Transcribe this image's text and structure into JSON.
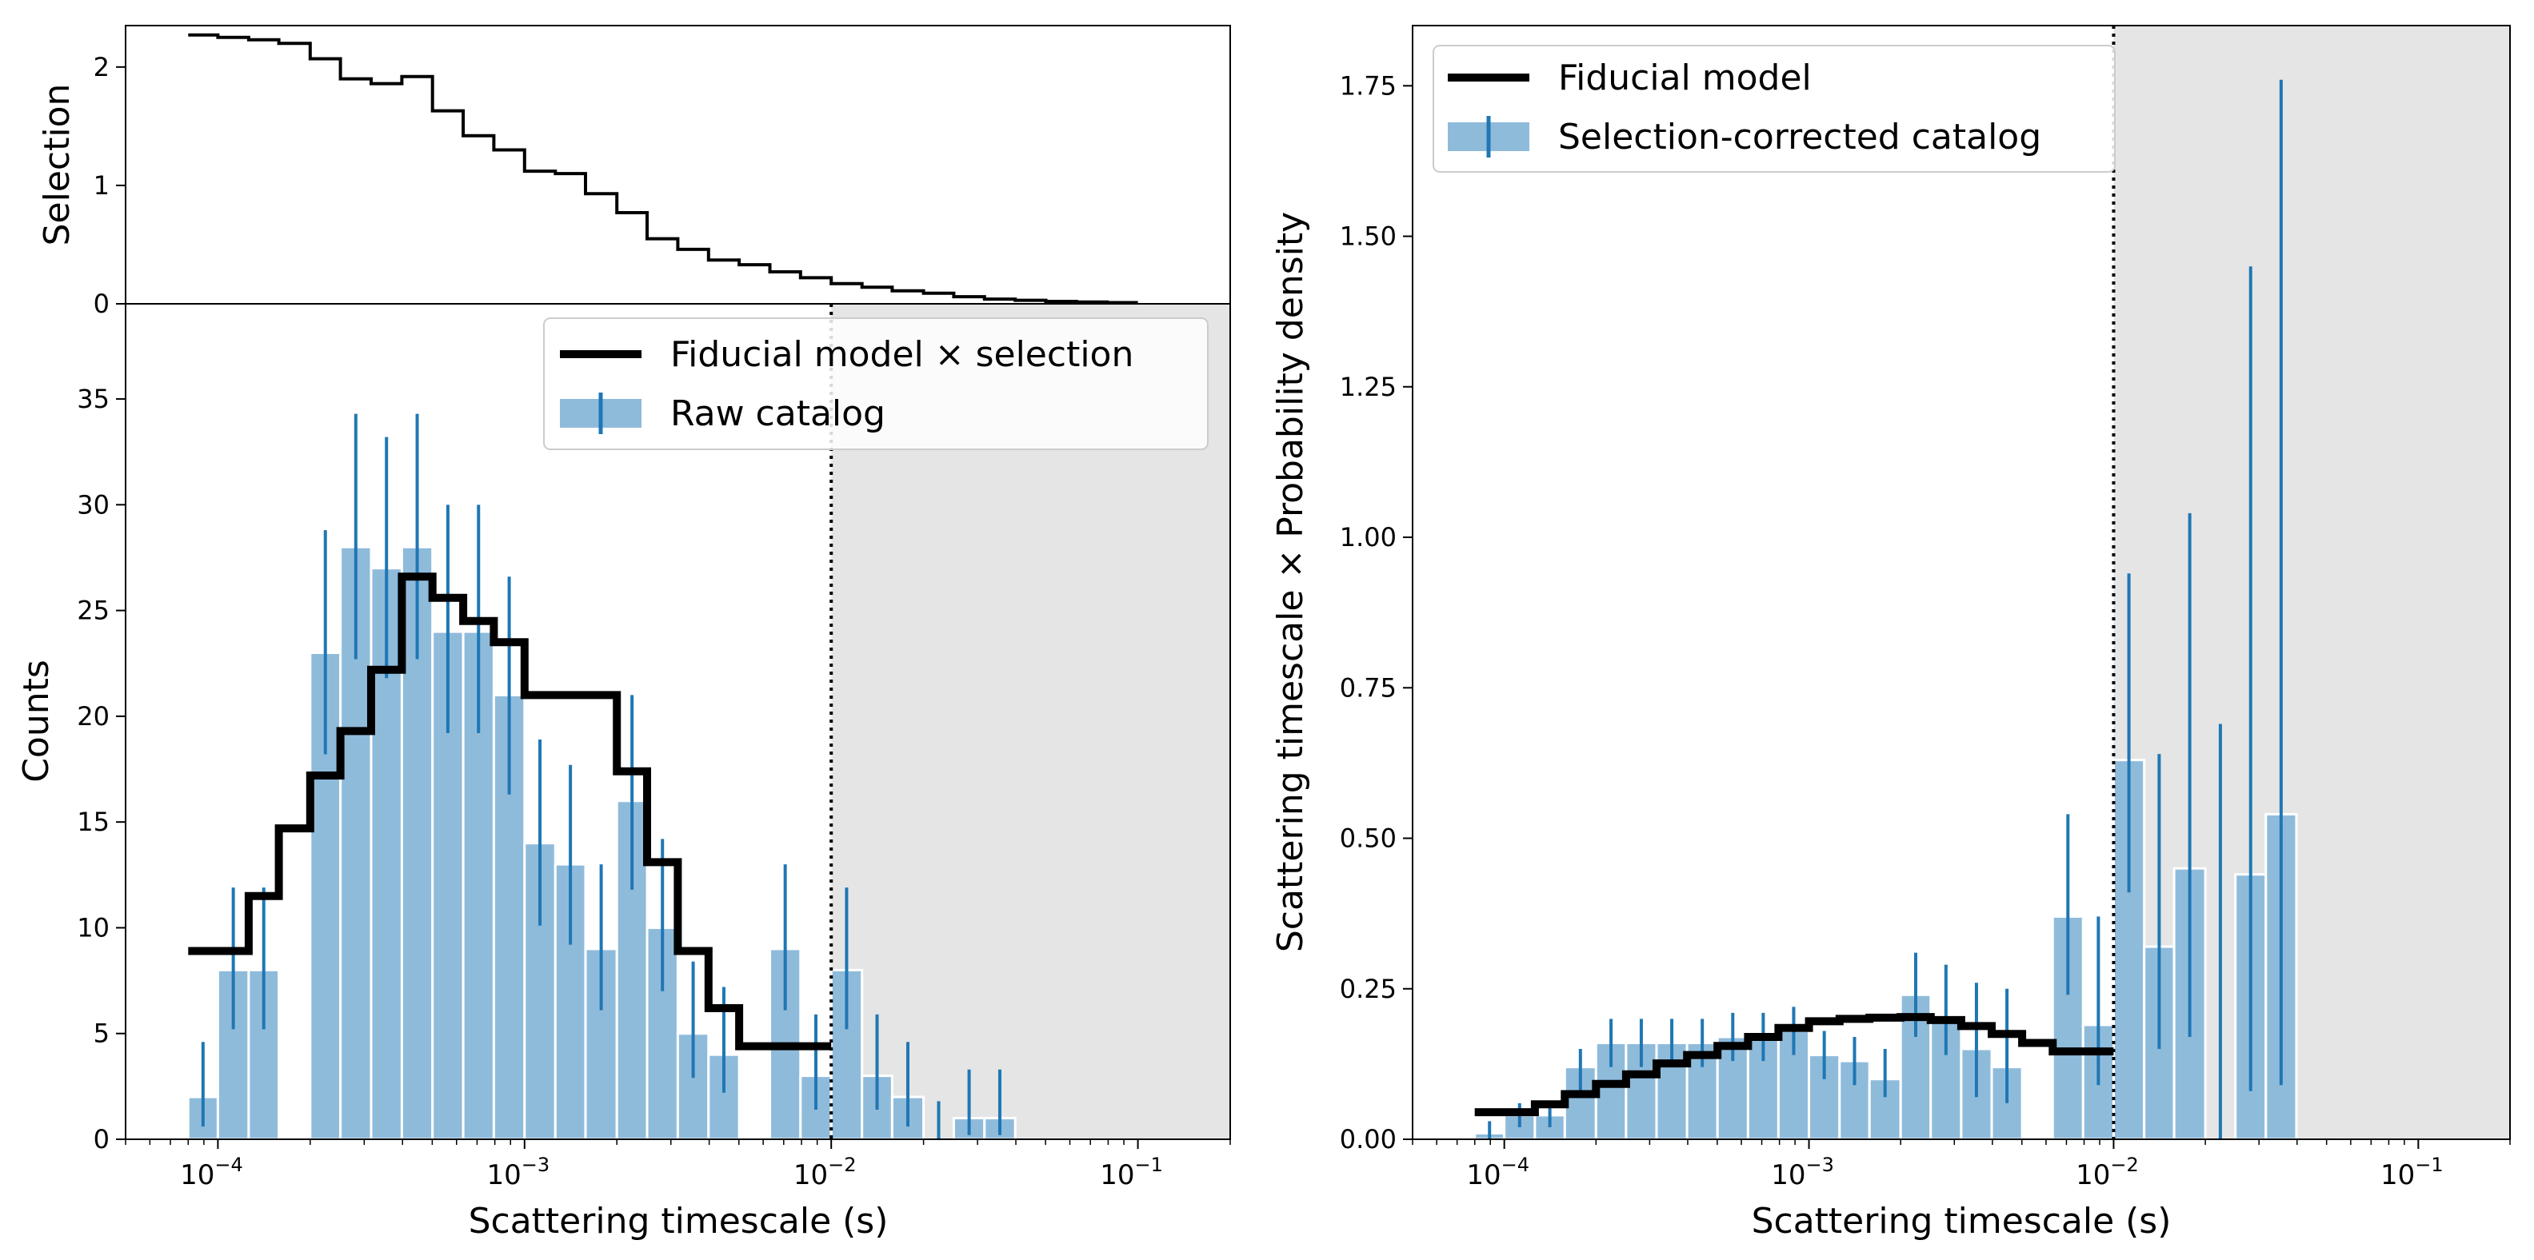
{
  "colors": {
    "bar_fill": "#8fbbdb",
    "bar_edge": "#ffffff",
    "errorbar": "#1f77b4",
    "model_line": "#000000",
    "shade": "#e5e5e5"
  },
  "chart_data": [
    {
      "panel": "top-left",
      "type": "line",
      "step": "post",
      "ylabel": "Selection",
      "xscale": "log",
      "xlim": [
        5e-05,
        0.2
      ],
      "ylim": [
        0,
        2.35
      ],
      "yticks": [
        {
          "v": 0,
          "label": "0"
        },
        {
          "v": 1,
          "label": "1"
        },
        {
          "v": 2,
          "label": "2"
        }
      ],
      "grid": false,
      "series": [
        {
          "edges": [
            8e-05,
            0.0001,
            0.000126,
            0.000158,
            0.0002,
            0.000251,
            0.000316,
            0.000398,
            0.000501,
            0.000631,
            0.000794,
            0.001,
            0.00126,
            0.00158,
            0.002,
            0.00251,
            0.00316,
            0.00398,
            0.00501,
            0.00631,
            0.00794,
            0.01,
            0.0126,
            0.0158,
            0.02,
            0.0251,
            0.0316,
            0.0398,
            0.0501,
            0.0631,
            0.0794,
            0.1
          ],
          "values": [
            2.27,
            2.25,
            2.23,
            2.2,
            2.07,
            1.9,
            1.86,
            1.92,
            1.63,
            1.42,
            1.3,
            1.12,
            1.1,
            0.93,
            0.77,
            0.55,
            0.46,
            0.37,
            0.33,
            0.27,
            0.22,
            0.17,
            0.14,
            0.11,
            0.09,
            0.06,
            0.04,
            0.03,
            0.02,
            0.015,
            0.01
          ]
        }
      ]
    },
    {
      "panel": "bottom-left",
      "type": "bar",
      "xlabel": "Scattering timescale (s)",
      "ylabel": "Counts",
      "xscale": "log",
      "xlim": [
        5e-05,
        0.2
      ],
      "ylim": [
        0,
        39.5
      ],
      "yticks": [
        {
          "v": 0,
          "label": "0"
        },
        {
          "v": 5,
          "label": "5"
        },
        {
          "v": 10,
          "label": "10"
        },
        {
          "v": 15,
          "label": "15"
        },
        {
          "v": 20,
          "label": "20"
        },
        {
          "v": 25,
          "label": "25"
        },
        {
          "v": 30,
          "label": "30"
        },
        {
          "v": 35,
          "label": "35"
        }
      ],
      "xticks": [
        {
          "v": 0.0001,
          "base": "10",
          "exp": "−4"
        },
        {
          "v": 0.001,
          "base": "10",
          "exp": "−3"
        },
        {
          "v": 0.01,
          "base": "10",
          "exp": "−2"
        },
        {
          "v": 0.1,
          "base": "10",
          "exp": "−1"
        }
      ],
      "vline": 0.01,
      "shaded_from": 0.01,
      "grid": false,
      "legend": {
        "location": "upper right",
        "entries": [
          "Fiducial model × selection",
          "Raw catalog"
        ]
      },
      "bins": [
        {
          "x0": 8e-05,
          "x1": 0.0001,
          "v": 2,
          "lo": 0.6,
          "hi": 4.6
        },
        {
          "x0": 0.0001,
          "x1": 0.000126,
          "v": 8,
          "lo": 5.2,
          "hi": 11.9
        },
        {
          "x0": 0.000126,
          "x1": 0.000158,
          "v": 8,
          "lo": 5.2,
          "hi": 11.9
        },
        {
          "x0": 0.000158,
          "x1": 0.0002,
          "v": 0
        },
        {
          "x0": 0.0002,
          "x1": 0.000251,
          "v": 23,
          "lo": 18.2,
          "hi": 28.8
        },
        {
          "x0": 0.000251,
          "x1": 0.000316,
          "v": 28,
          "lo": 22.7,
          "hi": 34.3
        },
        {
          "x0": 0.000316,
          "x1": 0.000398,
          "v": 27,
          "lo": 21.8,
          "hi": 33.2
        },
        {
          "x0": 0.000398,
          "x1": 0.000501,
          "v": 28,
          "lo": 22.7,
          "hi": 34.3
        },
        {
          "x0": 0.000501,
          "x1": 0.000631,
          "v": 24,
          "lo": 19.2,
          "hi": 30.0
        },
        {
          "x0": 0.000631,
          "x1": 0.000794,
          "v": 24,
          "lo": 19.2,
          "hi": 30.0
        },
        {
          "x0": 0.000794,
          "x1": 0.001,
          "v": 21,
          "lo": 16.3,
          "hi": 26.6
        },
        {
          "x0": 0.001,
          "x1": 0.00126,
          "v": 14,
          "lo": 10.1,
          "hi": 18.9
        },
        {
          "x0": 0.00126,
          "x1": 0.00158,
          "v": 13,
          "lo": 9.2,
          "hi": 17.7
        },
        {
          "x0": 0.00158,
          "x1": 0.002,
          "v": 9,
          "lo": 6.1,
          "hi": 13.0
        },
        {
          "x0": 0.002,
          "x1": 0.00251,
          "v": 16,
          "lo": 11.8,
          "hi": 21.0
        },
        {
          "x0": 0.00251,
          "x1": 0.00316,
          "v": 10,
          "lo": 7.0,
          "hi": 14.2
        },
        {
          "x0": 0.00316,
          "x1": 0.00398,
          "v": 5,
          "lo": 2.9,
          "hi": 8.4
        },
        {
          "x0": 0.00398,
          "x1": 0.00501,
          "v": 4,
          "lo": 2.2,
          "hi": 7.2
        },
        {
          "x0": 0.00501,
          "x1": 0.00631,
          "v": 0
        },
        {
          "x0": 0.00631,
          "x1": 0.00794,
          "v": 9,
          "lo": 6.1,
          "hi": 13.0
        },
        {
          "x0": 0.00794,
          "x1": 0.01,
          "v": 3,
          "lo": 1.4,
          "hi": 5.9
        },
        {
          "x0": 0.01,
          "x1": 0.0126,
          "v": 8,
          "lo": 5.2,
          "hi": 11.9
        },
        {
          "x0": 0.0126,
          "x1": 0.0158,
          "v": 3,
          "lo": 1.4,
          "hi": 5.9
        },
        {
          "x0": 0.0158,
          "x1": 0.02,
          "v": 2,
          "lo": 0.6,
          "hi": 4.6
        },
        {
          "x0": 0.02,
          "x1": 0.0251,
          "v": 0,
          "lo": 0,
          "hi": 1.8
        },
        {
          "x0": 0.0251,
          "x1": 0.0316,
          "v": 1,
          "lo": 0.2,
          "hi": 3.3
        },
        {
          "x0": 0.0316,
          "x1": 0.0398,
          "v": 1,
          "lo": 0.2,
          "hi": 3.3
        }
      ],
      "model": {
        "step": "post",
        "edges": [
          8e-05,
          0.0001,
          0.000126,
          0.000158,
          0.0002,
          0.000251,
          0.000316,
          0.000398,
          0.000501,
          0.000631,
          0.000794,
          0.001,
          0.00126,
          0.00158,
          0.002,
          0.00251,
          0.00316,
          0.00398,
          0.00501,
          0.00631,
          0.00794,
          0.01
        ],
        "values": [
          8.9,
          8.9,
          11.5,
          14.7,
          17.2,
          19.3,
          22.2,
          26.6,
          25.6,
          24.5,
          23.5,
          21.0,
          21.0,
          21.0,
          17.4,
          13.1,
          8.9,
          6.2,
          4.4,
          4.4,
          4.4
        ]
      }
    },
    {
      "panel": "right",
      "type": "bar",
      "xlabel": "Scattering timescale (s)",
      "ylabel": "Scattering timescale × Probability density",
      "xscale": "log",
      "xlim": [
        5e-05,
        0.2
      ],
      "ylim": [
        0,
        1.85
      ],
      "yticks": [
        {
          "v": 0,
          "label": "0.00"
        },
        {
          "v": 0.25,
          "label": "0.25"
        },
        {
          "v": 0.5,
          "label": "0.50"
        },
        {
          "v": 0.75,
          "label": "0.75"
        },
        {
          "v": 1.0,
          "label": "1.00"
        },
        {
          "v": 1.25,
          "label": "1.25"
        },
        {
          "v": 1.5,
          "label": "1.50"
        },
        {
          "v": 1.75,
          "label": "1.75"
        }
      ],
      "xticks": [
        {
          "v": 0.0001,
          "base": "10",
          "exp": "−4"
        },
        {
          "v": 0.001,
          "base": "10",
          "exp": "−3"
        },
        {
          "v": 0.01,
          "base": "10",
          "exp": "−2"
        },
        {
          "v": 0.1,
          "base": "10",
          "exp": "−1"
        }
      ],
      "vline": 0.01,
      "shaded_from": 0.01,
      "grid": false,
      "legend": {
        "location": "upper left",
        "entries": [
          "Fiducial model",
          "Selection-corrected catalog"
        ]
      },
      "bins": [
        {
          "x0": 8e-05,
          "x1": 0.0001,
          "v": 0.01,
          "lo": 0.0,
          "hi": 0.03
        },
        {
          "x0": 0.0001,
          "x1": 0.000126,
          "v": 0.04,
          "lo": 0.02,
          "hi": 0.06
        },
        {
          "x0": 0.000126,
          "x1": 0.000158,
          "v": 0.04,
          "lo": 0.02,
          "hi": 0.06
        },
        {
          "x0": 0.000158,
          "x1": 0.0002,
          "v": 0.12,
          "lo": 0.08,
          "hi": 0.15
        },
        {
          "x0": 0.0002,
          "x1": 0.000251,
          "v": 0.16,
          "lo": 0.12,
          "hi": 0.2
        },
        {
          "x0": 0.000251,
          "x1": 0.000316,
          "v": 0.16,
          "lo": 0.12,
          "hi": 0.2
        },
        {
          "x0": 0.000316,
          "x1": 0.000398,
          "v": 0.16,
          "lo": 0.12,
          "hi": 0.2
        },
        {
          "x0": 0.000398,
          "x1": 0.000501,
          "v": 0.16,
          "lo": 0.12,
          "hi": 0.2
        },
        {
          "x0": 0.000501,
          "x1": 0.000631,
          "v": 0.17,
          "lo": 0.13,
          "hi": 0.21
        },
        {
          "x0": 0.000631,
          "x1": 0.000794,
          "v": 0.17,
          "lo": 0.13,
          "hi": 0.21
        },
        {
          "x0": 0.000794,
          "x1": 0.001,
          "v": 0.18,
          "lo": 0.14,
          "hi": 0.22
        },
        {
          "x0": 0.001,
          "x1": 0.00126,
          "v": 0.14,
          "lo": 0.1,
          "hi": 0.18
        },
        {
          "x0": 0.00126,
          "x1": 0.00158,
          "v": 0.13,
          "lo": 0.09,
          "hi": 0.17
        },
        {
          "x0": 0.00158,
          "x1": 0.002,
          "v": 0.1,
          "lo": 0.07,
          "hi": 0.15
        },
        {
          "x0": 0.002,
          "x1": 0.00251,
          "v": 0.24,
          "lo": 0.17,
          "hi": 0.31
        },
        {
          "x0": 0.00251,
          "x1": 0.00316,
          "v": 0.2,
          "lo": 0.14,
          "hi": 0.29
        },
        {
          "x0": 0.00316,
          "x1": 0.00398,
          "v": 0.15,
          "lo": 0.07,
          "hi": 0.26
        },
        {
          "x0": 0.00398,
          "x1": 0.00501,
          "v": 0.12,
          "lo": 0.06,
          "hi": 0.25
        },
        {
          "x0": 0.00501,
          "x1": 0.00631,
          "v": 0.0,
          "lo": 0.0,
          "hi": 0.0
        },
        {
          "x0": 0.00631,
          "x1": 0.00794,
          "v": 0.37,
          "lo": 0.24,
          "hi": 0.54
        },
        {
          "x0": 0.00794,
          "x1": 0.01,
          "v": 0.19,
          "lo": 0.09,
          "hi": 0.37
        },
        {
          "x0": 0.01,
          "x1": 0.0126,
          "v": 0.63,
          "lo": 0.41,
          "hi": 0.94
        },
        {
          "x0": 0.0126,
          "x1": 0.0158,
          "v": 0.32,
          "lo": 0.15,
          "hi": 0.64
        },
        {
          "x0": 0.0158,
          "x1": 0.02,
          "v": 0.45,
          "lo": 0.17,
          "hi": 1.04
        },
        {
          "x0": 0.02,
          "x1": 0.0251,
          "v": 0.0,
          "lo": 0.0,
          "hi": 0.69
        },
        {
          "x0": 0.0251,
          "x1": 0.0316,
          "v": 0.44,
          "lo": 0.08,
          "hi": 1.45
        },
        {
          "x0": 0.0316,
          "x1": 0.0398,
          "v": 0.54,
          "lo": 0.09,
          "hi": 1.76
        }
      ],
      "model": {
        "step": "post",
        "edges": [
          8e-05,
          0.0001,
          0.000126,
          0.000158,
          0.0002,
          0.000251,
          0.000316,
          0.000398,
          0.000501,
          0.000631,
          0.000794,
          0.001,
          0.00126,
          0.00158,
          0.002,
          0.00251,
          0.00316,
          0.00398,
          0.00501,
          0.00631,
          0.00794,
          0.01
        ],
        "values": [
          0.045,
          0.045,
          0.058,
          0.075,
          0.092,
          0.108,
          0.126,
          0.14,
          0.155,
          0.17,
          0.185,
          0.196,
          0.2,
          0.202,
          0.203,
          0.198,
          0.188,
          0.175,
          0.16,
          0.146,
          0.146
        ]
      }
    }
  ]
}
